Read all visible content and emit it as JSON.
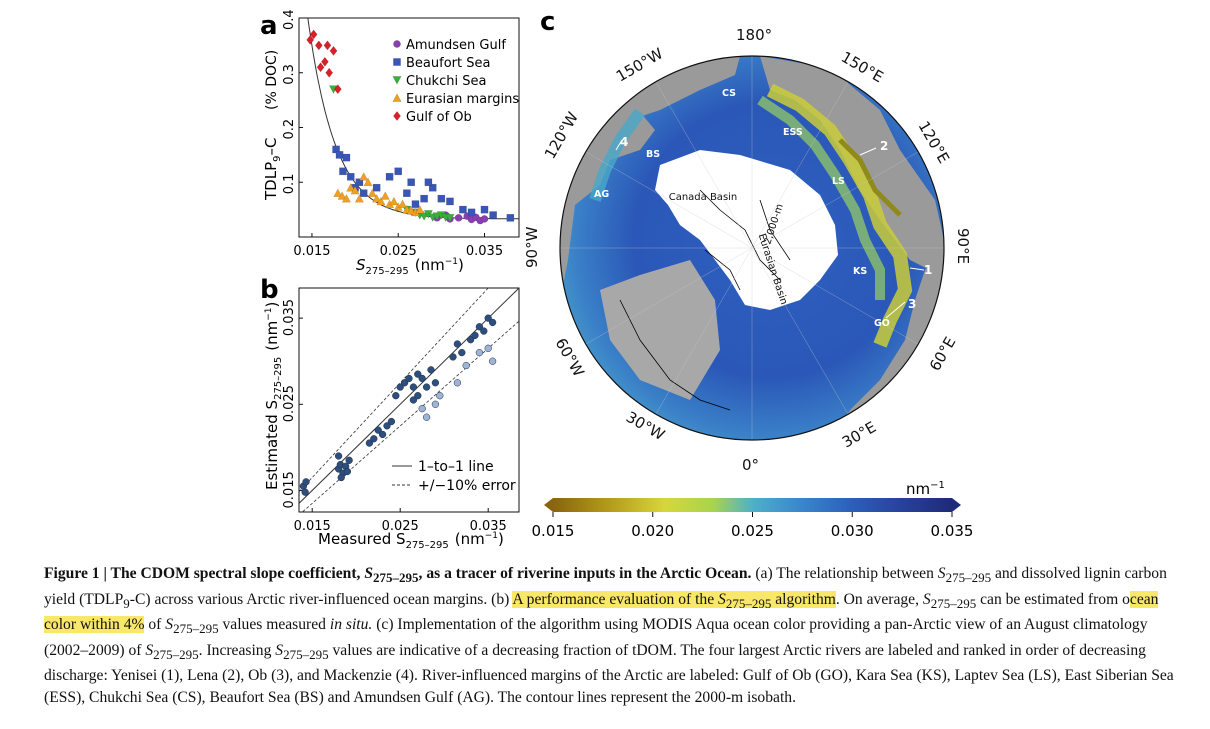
{
  "panel_a": {
    "label": "a",
    "ylabel_main": "TDLP",
    "ylabel_sub": "9",
    "ylabel_rest": "–C",
    "ylabel_unit": "(% DOC)",
    "xlabel_main": "S",
    "xlabel_sub": "275–295",
    "xlabel_unit": "(nm",
    "xlabel_unit_sup": "−1",
    "xlabel_unit_end": ")",
    "legend": [
      {
        "name": "Amundsen Gulf",
        "color": "#8a3fb0",
        "marker": "circle"
      },
      {
        "name": "Beaufort Sea",
        "color": "#3a56b5",
        "marker": "square"
      },
      {
        "name": "Chukchi Sea",
        "color": "#3cae3c",
        "marker": "triangle-down"
      },
      {
        "name": "Eurasian margins",
        "color": "#f0a020",
        "marker": "triangle-up"
      },
      {
        "name": "Gulf of Ob",
        "color": "#d8202a",
        "marker": "diamond"
      }
    ]
  },
  "panel_b": {
    "label": "b",
    "ylabel_main": "Estimated S",
    "ylabel_sub": "275–295",
    "ylabel_unit": "(nm",
    "ylabel_unit_sup": "−1",
    "ylabel_unit_end": ")",
    "xlabel_main": "Measured S",
    "xlabel_sub": "275–295",
    "xlabel_unit": "(nm",
    "xlabel_unit_sup": "−1",
    "xlabel_unit_end": ")",
    "legend": [
      {
        "name": "1–to–1 line",
        "style": "solid"
      },
      {
        "name": "+/−10% error",
        "style": "dashed"
      }
    ]
  },
  "panel_c": {
    "label": "c",
    "longitudes": [
      "180°",
      "150°E",
      "120°E",
      "90°E",
      "60°E",
      "30°E",
      "0°",
      "30°W",
      "60°W",
      "90°W",
      "120°W",
      "150°W"
    ],
    "region_labels": [
      "CS",
      "ESS",
      "LS",
      "KS",
      "GO",
      "BS",
      "AG"
    ],
    "basin_labels": [
      "Canada Basin",
      "Eurasian Basin",
      "2,000-m"
    ],
    "river_numbers": [
      "1",
      "2",
      "3",
      "4"
    ],
    "colorbar": {
      "unit": "nm",
      "unit_sup": "−1",
      "ticks": [
        "0.015",
        "0.020",
        "0.025",
        "0.030",
        "0.035"
      ],
      "colors": [
        "#8a6410",
        "#b59a1a",
        "#d7d63a",
        "#a8d44e",
        "#4fb0c8",
        "#3a86cc",
        "#2c5fb8",
        "#27409a",
        "#1f2a78"
      ]
    }
  },
  "chart_data": [
    {
      "type": "scatter",
      "title": "",
      "xlabel": "S275–295 (nm−1)",
      "ylabel": "TDLP9–C (% DOC)",
      "xlim": [
        0.0135,
        0.039
      ],
      "ylim": [
        0,
        0.4
      ],
      "xticks": [
        "0.015",
        "0.025",
        "0.035"
      ],
      "yticks": [
        "0.1",
        "0.2",
        "0.3",
        "0.4"
      ],
      "legend_position": "top-right",
      "series": [
        {
          "name": "Amundsen Gulf",
          "points": [
            [
              0.0295,
              0.035
            ],
            [
              0.0305,
              0.04
            ],
            [
              0.031,
              0.033
            ],
            [
              0.032,
              0.035
            ],
            [
              0.033,
              0.038
            ],
            [
              0.0335,
              0.032
            ],
            [
              0.034,
              0.036
            ],
            [
              0.0345,
              0.03
            ],
            [
              0.035,
              0.033
            ]
          ]
        },
        {
          "name": "Beaufort Sea",
          "points": [
            [
              0.0178,
              0.16
            ],
            [
              0.0182,
              0.15
            ],
            [
              0.0186,
              0.12
            ],
            [
              0.019,
              0.145
            ],
            [
              0.0195,
              0.11
            ],
            [
              0.02,
              0.09
            ],
            [
              0.0205,
              0.1
            ],
            [
              0.021,
              0.08
            ],
            [
              0.0225,
              0.09
            ],
            [
              0.024,
              0.11
            ],
            [
              0.025,
              0.12
            ],
            [
              0.026,
              0.08
            ],
            [
              0.0265,
              0.1
            ],
            [
              0.027,
              0.06
            ],
            [
              0.028,
              0.07
            ],
            [
              0.029,
              0.09
            ],
            [
              0.0285,
              0.1
            ],
            [
              0.03,
              0.07
            ],
            [
              0.031,
              0.065
            ],
            [
              0.0325,
              0.05
            ],
            [
              0.0335,
              0.045
            ],
            [
              0.035,
              0.05
            ],
            [
              0.036,
              0.04
            ],
            [
              0.038,
              0.035
            ]
          ]
        },
        {
          "name": "Chukchi Sea",
          "points": [
            [
              0.0175,
              0.27
            ],
            [
              0.026,
              0.05
            ],
            [
              0.027,
              0.045
            ],
            [
              0.0275,
              0.04
            ],
            [
              0.028,
              0.038
            ],
            [
              0.0285,
              0.042
            ],
            [
              0.029,
              0.036
            ],
            [
              0.0295,
              0.038
            ],
            [
              0.03,
              0.04
            ],
            [
              0.0305,
              0.036
            ],
            [
              0.031,
              0.035
            ]
          ]
        },
        {
          "name": "Eurasian margins",
          "points": [
            [
              0.018,
              0.08
            ],
            [
              0.0185,
              0.075
            ],
            [
              0.019,
              0.07
            ],
            [
              0.0195,
              0.09
            ],
            [
              0.02,
              0.085
            ],
            [
              0.0205,
              0.07
            ],
            [
              0.021,
              0.11
            ],
            [
              0.0215,
              0.1
            ],
            [
              0.022,
              0.08
            ],
            [
              0.0225,
              0.07
            ],
            [
              0.023,
              0.065
            ],
            [
              0.0235,
              0.075
            ],
            [
              0.024,
              0.06
            ],
            [
              0.0245,
              0.065
            ],
            [
              0.025,
              0.055
            ],
            [
              0.0255,
              0.06
            ],
            [
              0.026,
              0.05
            ],
            [
              0.0265,
              0.048
            ],
            [
              0.027,
              0.045
            ],
            [
              0.0275,
              0.05
            ]
          ]
        },
        {
          "name": "Gulf of Ob",
          "points": [
            [
              0.0148,
              0.36
            ],
            [
              0.0152,
              0.37
            ],
            [
              0.0158,
              0.35
            ],
            [
              0.016,
              0.31
            ],
            [
              0.0165,
              0.32
            ],
            [
              0.017,
              0.3
            ],
            [
              0.0168,
              0.35
            ],
            [
              0.0175,
              0.34
            ],
            [
              0.018,
              0.27
            ]
          ]
        }
      ],
      "fit_curve": "exponential decay"
    },
    {
      "type": "scatter",
      "title": "",
      "xlabel": "Measured S275–295 (nm−1)",
      "ylabel": "Estimated S275–295 (nm−1)",
      "xlim": [
        0.0135,
        0.0385
      ],
      "ylim": [
        0.0125,
        0.0385
      ],
      "xticks": [
        "0.015",
        "0.025",
        "0.035"
      ],
      "yticks": [
        "0.015",
        "0.025",
        "0.035"
      ],
      "legend_position": "bottom-right",
      "series": [
        {
          "name": "samples",
          "points": [
            [
              0.014,
              0.0155
            ],
            [
              0.0142,
              0.0148
            ],
            [
              0.0143,
              0.016
            ],
            [
              0.018,
              0.0175
            ],
            [
              0.0182,
              0.018
            ],
            [
              0.0185,
              0.017
            ],
            [
              0.0188,
              0.0178
            ],
            [
              0.019,
              0.0172
            ],
            [
              0.0192,
              0.0185
            ],
            [
              0.018,
              0.019
            ],
            [
              0.0183,
              0.0165
            ],
            [
              0.0215,
              0.0205
            ],
            [
              0.022,
              0.021
            ],
            [
              0.0225,
              0.022
            ],
            [
              0.023,
              0.0215
            ],
            [
              0.0235,
              0.0225
            ],
            [
              0.024,
              0.023
            ],
            [
              0.0245,
              0.026
            ],
            [
              0.025,
              0.027
            ],
            [
              0.0255,
              0.0275
            ],
            [
              0.026,
              0.028
            ],
            [
              0.0265,
              0.027
            ],
            [
              0.027,
              0.0285
            ],
            [
              0.0275,
              0.028
            ],
            [
              0.028,
              0.027
            ],
            [
              0.0285,
              0.029
            ],
            [
              0.029,
              0.0275
            ],
            [
              0.0265,
              0.0255
            ],
            [
              0.027,
              0.026
            ],
            [
              0.0275,
              0.0245
            ],
            [
              0.028,
              0.0235
            ],
            [
              0.029,
              0.025
            ],
            [
              0.0295,
              0.026
            ],
            [
              0.031,
              0.0305
            ],
            [
              0.0315,
              0.032
            ],
            [
              0.032,
              0.031
            ],
            [
              0.033,
              0.0325
            ],
            [
              0.0335,
              0.033
            ],
            [
              0.034,
              0.034
            ],
            [
              0.0345,
              0.0335
            ],
            [
              0.035,
              0.035
            ],
            [
              0.0355,
              0.0345
            ],
            [
              0.035,
              0.0315
            ],
            [
              0.034,
              0.031
            ],
            [
              0.0325,
              0.0295
            ],
            [
              0.0315,
              0.0275
            ],
            [
              0.0355,
              0.03
            ]
          ]
        }
      ],
      "lines": [
        "1–to–1 line",
        "+/−10% error"
      ]
    }
  ],
  "caption": {
    "fig_label": "Figure 1",
    "title_a": "The CDOM spectral slope coefficient, ",
    "title_s": "S",
    "title_sub": "275–295",
    "title_b": ", as a tracer of riverine inputs in the Arctic Ocean.",
    "t1": "(a) The relationship between ",
    "t2": " and dissolved lignin carbon yield (TDLP",
    "t2_sub": "9",
    "t3": "-C) across various Arctic river-influenced ocean margins. (b) ",
    "hl1a": "A performance evaluation of the ",
    "hl1b": " algorithm",
    "t4": ". On average, ",
    "t5": " can be estimated from o",
    "hl2": "cean color within 4%",
    "t6": " of ",
    "t7": " values measured ",
    "t7i": "in situ.",
    "t8": " (c) Implementation of the algorithm using MODIS Aqua ocean color providing a pan-Arctic view of an August climatology (2002–2009) of ",
    "t9": ". Increasing ",
    "t10": " values are indicative of a decreasing fraction of tDOM. The four largest Arctic rivers are labeled and ranked in order of decreasing discharge: Yenisei (1), Lena (2), Ob (3), and Mackenzie (4). River-influenced margins of the Arctic are labeled: Gulf of Ob (GO), Kara Sea (KS), Laptev Sea (LS), East Siberian Sea (ESS), Chukchi Sea (CS), Beaufort Sea (BS) and Amundsen Gulf (AG). The contour lines represent the 2000-m isobath.",
    "s": "S",
    "sub": "275–295"
  }
}
